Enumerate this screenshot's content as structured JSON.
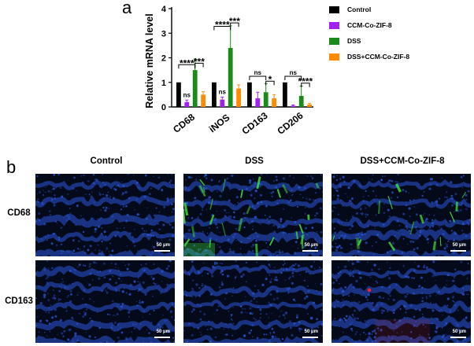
{
  "panels": {
    "a_letter": "a",
    "b_letter": "b"
  },
  "chart_data": {
    "type": "bar",
    "title": "",
    "xlabel": "",
    "ylabel": "Relative mRNA level",
    "ylim": [
      0,
      4
    ],
    "yticks": [
      "0",
      "1",
      "2",
      "3",
      "4"
    ],
    "categories": [
      "CD68",
      "iNOS",
      "CD163",
      "CD206"
    ],
    "series": [
      {
        "name": "Control",
        "color": "#000000",
        "values": [
          1.0,
          1.0,
          1.0,
          1.0
        ],
        "errors": [
          0.0,
          0.0,
          0.0,
          0.0
        ]
      },
      {
        "name": "CCM-Co-ZIF-8",
        "color": "#a020f0",
        "values": [
          0.2,
          0.3,
          0.35,
          0.05
        ],
        "errors": [
          0.08,
          0.1,
          0.25,
          0.03
        ]
      },
      {
        "name": "DSS",
        "color": "#1a8a1a",
        "values": [
          1.5,
          2.4,
          0.6,
          0.45
        ],
        "errors": [
          0.45,
          0.9,
          0.35,
          0.4
        ]
      },
      {
        "name": "DSS+CCM-Co-ZIF-8",
        "color": "#ff8c00",
        "values": [
          0.5,
          0.75,
          0.35,
          0.1
        ],
        "errors": [
          0.12,
          0.15,
          0.15,
          0.05
        ]
      }
    ],
    "significance": [
      {
        "category": "CD68",
        "label": "ns"
      },
      {
        "category": "CD68",
        "label": "****"
      },
      {
        "category": "CD68",
        "label": "***"
      },
      {
        "category": "iNOS",
        "label": "ns"
      },
      {
        "category": "iNOS",
        "label": "****"
      },
      {
        "category": "iNOS",
        "label": "***"
      },
      {
        "category": "CD163",
        "label": "ns"
      },
      {
        "category": "CD163",
        "label": "*"
      },
      {
        "category": "CD206",
        "label": "ns"
      },
      {
        "category": "CD206",
        "label": "****"
      }
    ],
    "legend_position": "right"
  },
  "micrographs": {
    "columns": [
      "Control",
      "DSS",
      "DSS+CCM-Co-ZIF-8"
    ],
    "rows": [
      "CD68",
      "CD163"
    ],
    "scale_bar": "50 μm",
    "colors": {
      "dapi": "#2a55d8",
      "cd68": "#3ddc3d",
      "cd163": "#ff2020",
      "background": "#050a1a"
    }
  }
}
